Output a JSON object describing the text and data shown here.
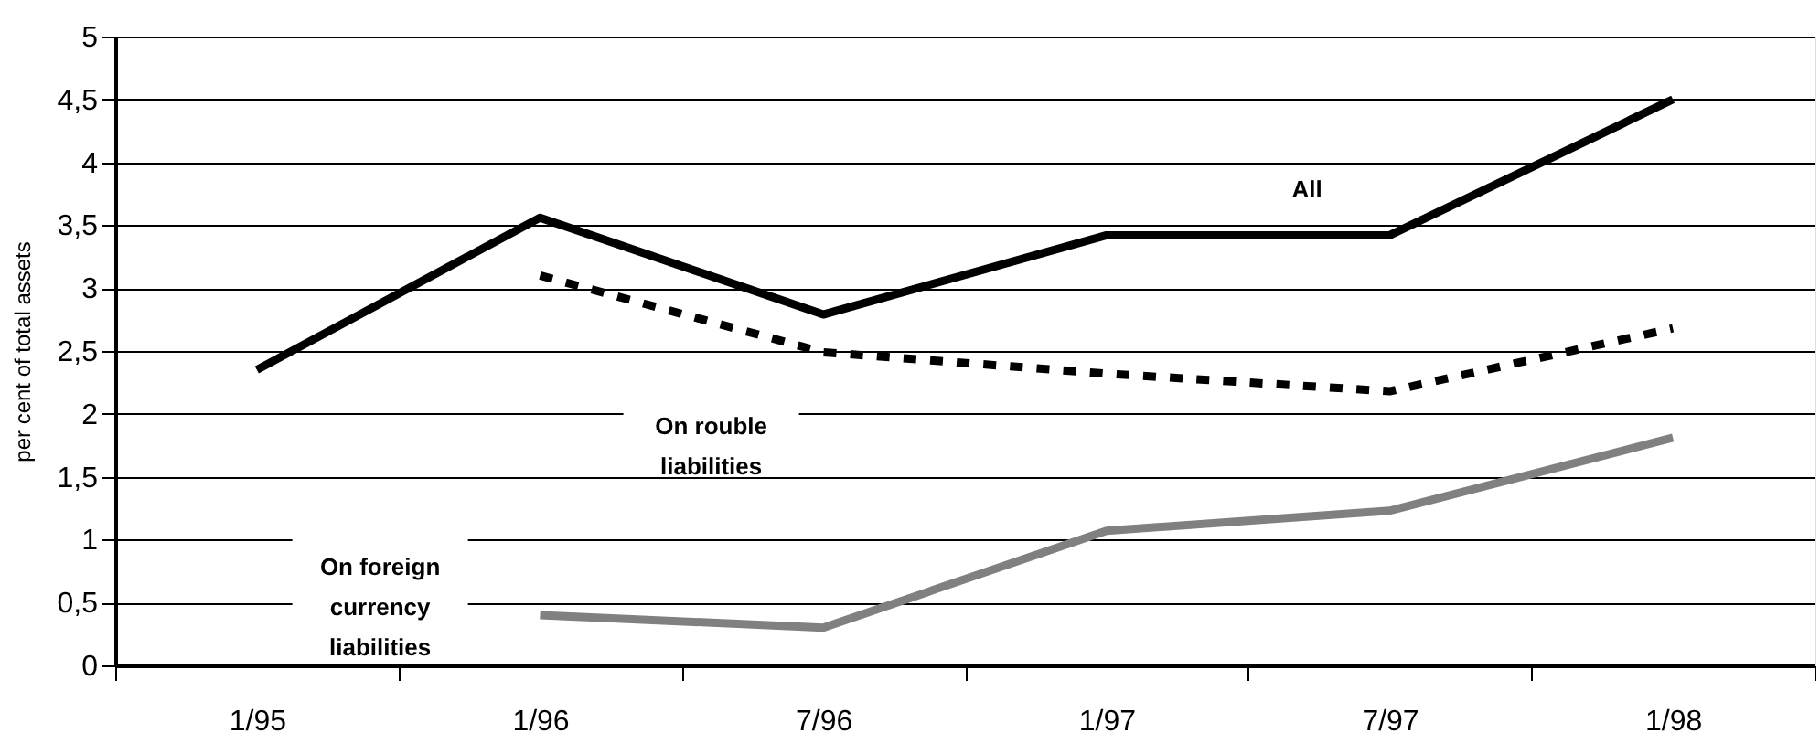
{
  "chart_data": {
    "type": "line",
    "ylabel": "per cent of total assets",
    "categories": [
      "1/95",
      "1/96",
      "7/96",
      "1/97",
      "7/97",
      "1/98"
    ],
    "series": [
      {
        "color": "#000000",
        "line_style": "solid",
        "values": [
          2.35,
          3.56,
          2.79,
          3.42,
          3.42,
          4.5
        ]
      },
      {
        "color": "#000000",
        "line_style": "dashed",
        "values": [
          null,
          3.1,
          2.49,
          2.32,
          2.18,
          2.68
        ]
      },
      {
        "color": "#808080",
        "line_style": "solid",
        "values": [
          null,
          0.4,
          0.3,
          1.07,
          1.23,
          1.81
        ]
      }
    ],
    "ylim": [
      0,
      5
    ],
    "yticks": [
      0,
      {
        "value": 0.5,
        "label": "0,5"
      },
      1,
      {
        "value": 1.5,
        "label": "1,5"
      },
      2,
      {
        "value": 2.5,
        "label": "2,5"
      },
      3,
      {
        "value": 3.5,
        "label": "3,5"
      },
      4,
      {
        "value": 4.5,
        "label": "4,5"
      },
      5
    ],
    "grid": "y",
    "legend": false,
    "marker": "none",
    "annotations": [
      "All",
      "On rouble\nliabilities",
      "On foreign\ncurrency\nliabilities"
    ]
  }
}
